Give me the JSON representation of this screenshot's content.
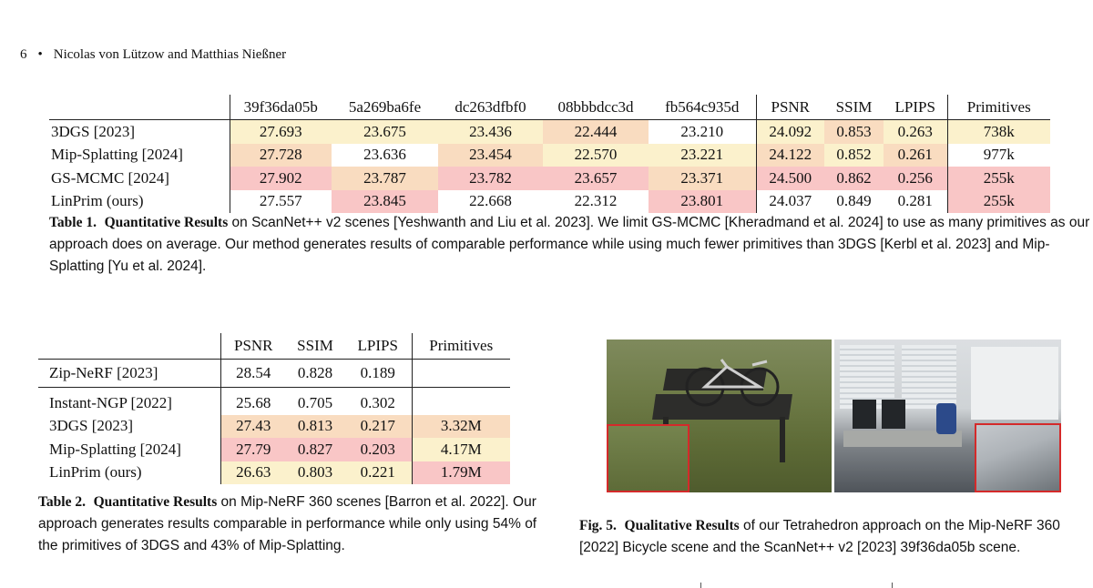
{
  "header": {
    "page_number": "6",
    "separator": "•",
    "authors": "Nicolas von Lützow and Matthias Nießner"
  },
  "table1": {
    "columns": [
      "",
      "39f36da05b",
      "5a269ba6fe",
      "dc263dfbf0",
      "08bbbdcc3d",
      "fb564c935d",
      "PSNR",
      "SSIM",
      "LPIPS",
      "Primitives"
    ],
    "rows": [
      {
        "label": "3DGS [2023]",
        "cells": [
          "27.693",
          "23.675",
          "23.436",
          "22.444",
          "23.210",
          "24.092",
          "0.853",
          "0.263",
          "738k"
        ]
      },
      {
        "label": "Mip-Splatting [2024]",
        "cells": [
          "27.728",
          "23.636",
          "23.454",
          "22.570",
          "23.221",
          "24.122",
          "0.852",
          "0.261",
          "977k"
        ]
      },
      {
        "label": "GS-MCMC [2024]",
        "cells": [
          "27.902",
          "23.787",
          "23.782",
          "23.657",
          "23.371",
          "24.500",
          "0.862",
          "0.256",
          "255k"
        ]
      },
      {
        "label": "LinPrim (ours)",
        "cells": [
          "27.557",
          "23.845",
          "22.668",
          "22.312",
          "23.801",
          "24.037",
          "0.849",
          "0.281",
          "255k"
        ]
      }
    ],
    "caption_label": "Table 1.",
    "caption_bold": "Quantitative Results",
    "caption_text": "on ScanNet++ v2 scenes [Yeshwanth and Liu et al. 2023]. We limit GS-MCMC [Kheradmand et al. 2024] to use as many primitives as our approach does on average. Our method generates results of comparable performance while using much fewer primitives than 3DGS [Kerbl et al. 2023] and Mip-Splatting [Yu et al. 2024]."
  },
  "table2": {
    "columns": [
      "",
      "PSNR",
      "SSIM",
      "LPIPS",
      "Primitives"
    ],
    "rows": [
      {
        "label": "Zip-NeRF [2023]",
        "cells": [
          "28.54",
          "0.828",
          "0.189",
          ""
        ]
      },
      {
        "label": "Instant-NGP [2022]",
        "cells": [
          "25.68",
          "0.705",
          "0.302",
          ""
        ]
      },
      {
        "label": "3DGS [2023]",
        "cells": [
          "27.43",
          "0.813",
          "0.217",
          "3.32M"
        ]
      },
      {
        "label": "Mip-Splatting [2024]",
        "cells": [
          "27.79",
          "0.827",
          "0.203",
          "4.17M"
        ]
      },
      {
        "label": "LinPrim (ours)",
        "cells": [
          "26.63",
          "0.803",
          "0.221",
          "1.79M"
        ]
      }
    ],
    "caption_label": "Table 2.",
    "caption_bold": "Quantitative Results",
    "caption_text": "on Mip-NeRF 360 scenes [Barron et al. 2022]. Our approach generates results comparable in performance while only using 54% of the primitives of 3DGS and 43% of Mip-Splatting."
  },
  "figure5": {
    "caption_label": "Fig. 5.",
    "caption_bold": "Qualitative Results",
    "caption_text": "of our Tetrahedron approach on the Mip-NeRF 360 [2022] Bicycle scene and the ScanNet++ v2 [2023] 39f36da05b scene."
  },
  "colors": {
    "rank1": "#f9c6c6",
    "rank2": "#f9dcc0",
    "rank3": "#fbf1cc",
    "inset_border": "#d42a2a"
  }
}
